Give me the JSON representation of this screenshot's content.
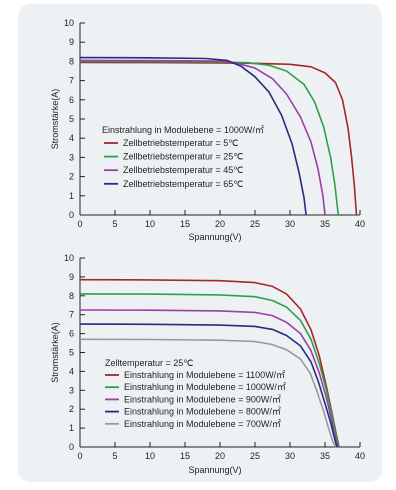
{
  "colors": {
    "red": "#a3282a",
    "green": "#2ea04a",
    "purple": "#9b3ea7",
    "navy": "#272c7f",
    "gray": "#9a9a9a",
    "axis": "#222222"
  },
  "chart_data": [
    {
      "type": "line",
      "title": "",
      "xlabel": "Spannung(V)",
      "ylabel": "Stromstärke(A)",
      "xlim": [
        0,
        40
      ],
      "ylim": [
        0,
        10
      ],
      "x_ticks": [
        0,
        5,
        10,
        15,
        20,
        25,
        30,
        35,
        40
      ],
      "y_ticks": [
        0,
        1,
        2,
        3,
        4,
        5,
        6,
        7,
        8,
        9,
        10
      ],
      "legend_title": "Einstrahlung in Modulebene = 1000W/㎡",
      "legend_position": "lower-left",
      "series": [
        {
          "name": "Zellbetriebstemperatur = 5℃",
          "color": "#a3282a",
          "points": [
            [
              0,
              7.95
            ],
            [
              10,
              7.94
            ],
            [
              20,
              7.92
            ],
            [
              25,
              7.9
            ],
            [
              30,
              7.85
            ],
            [
              33,
              7.72
            ],
            [
              35,
              7.4
            ],
            [
              36.5,
              6.9
            ],
            [
              37.5,
              6.0
            ],
            [
              38.3,
              4.5
            ],
            [
              38.8,
              3.0
            ],
            [
              39.2,
              1.5
            ],
            [
              39.5,
              0
            ]
          ]
        },
        {
          "name": "Zellbetriebstemperatur = 25℃",
          "color": "#2ea04a",
          "points": [
            [
              0,
              8.0
            ],
            [
              10,
              7.99
            ],
            [
              20,
              7.97
            ],
            [
              24,
              7.93
            ],
            [
              27,
              7.8
            ],
            [
              29.5,
              7.5
            ],
            [
              32,
              6.8
            ],
            [
              33.5,
              5.9
            ],
            [
              34.8,
              4.6
            ],
            [
              35.8,
              3.0
            ],
            [
              36.4,
              1.6
            ],
            [
              36.9,
              0
            ]
          ]
        },
        {
          "name": "Zellbetriebstemperatur = 45℃",
          "color": "#9b3ea7",
          "points": [
            [
              0,
              8.05
            ],
            [
              10,
              8.04
            ],
            [
              20,
              8.02
            ],
            [
              22.5,
              7.9
            ],
            [
              25,
              7.65
            ],
            [
              27.5,
              7.1
            ],
            [
              29.5,
              6.3
            ],
            [
              31.5,
              5.1
            ],
            [
              33,
              3.8
            ],
            [
              34,
              2.4
            ],
            [
              34.7,
              1.0
            ],
            [
              35,
              0
            ]
          ]
        },
        {
          "name": "Zellbetriebstemperatur = 65℃",
          "color": "#272c7f",
          "points": [
            [
              0,
              8.2
            ],
            [
              10,
              8.19
            ],
            [
              18,
              8.15
            ],
            [
              21,
              8.05
            ],
            [
              23,
              7.75
            ],
            [
              25,
              7.2
            ],
            [
              27,
              6.4
            ],
            [
              28.8,
              5.2
            ],
            [
              30.3,
              3.7
            ],
            [
              31.3,
              2.2
            ],
            [
              32,
              0.9
            ],
            [
              32.3,
              0
            ]
          ]
        }
      ]
    },
    {
      "type": "line",
      "title": "",
      "xlabel": "Spannung(V)",
      "ylabel": "Stromstärke(A)",
      "xlim": [
        0,
        40
      ],
      "ylim": [
        0,
        10
      ],
      "x_ticks": [
        0,
        5,
        10,
        15,
        20,
        25,
        30,
        35,
        40
      ],
      "y_ticks": [
        0,
        1,
        2,
        3,
        4,
        5,
        6,
        7,
        8,
        9,
        10
      ],
      "legend_title": "Zelltemperatur = 25℃",
      "legend_position": "lower-left",
      "series": [
        {
          "name": "Einstrahlung in Modulebene = 1100W/㎡",
          "color": "#a3282a",
          "points": [
            [
              0,
              8.85
            ],
            [
              10,
              8.84
            ],
            [
              20,
              8.8
            ],
            [
              25,
              8.7
            ],
            [
              27.5,
              8.5
            ],
            [
              29.5,
              8.1
            ],
            [
              31.5,
              7.3
            ],
            [
              33,
              6.2
            ],
            [
              34.2,
              4.8
            ],
            [
              35.2,
              3.2
            ],
            [
              36,
              1.8
            ],
            [
              36.6,
              0.7
            ],
            [
              37,
              0
            ]
          ]
        },
        {
          "name": "Einstrahlung in Modulebene = 1000W/㎡",
          "color": "#2ea04a",
          "points": [
            [
              0,
              8.1
            ],
            [
              10,
              8.09
            ],
            [
              20,
              8.05
            ],
            [
              25,
              7.95
            ],
            [
              27.5,
              7.75
            ],
            [
              29.5,
              7.4
            ],
            [
              31.5,
              6.7
            ],
            [
              33,
              5.7
            ],
            [
              34.2,
              4.4
            ],
            [
              35.2,
              3.0
            ],
            [
              36,
              1.7
            ],
            [
              36.6,
              0.6
            ],
            [
              36.9,
              0
            ]
          ]
        },
        {
          "name": "Einstrahlung in Modulebene = 900W/㎡",
          "color": "#9b3ea7",
          "points": [
            [
              0,
              7.25
            ],
            [
              10,
              7.24
            ],
            [
              20,
              7.2
            ],
            [
              25,
              7.12
            ],
            [
              27.5,
              6.95
            ],
            [
              29.5,
              6.6
            ],
            [
              31.5,
              6.0
            ],
            [
              33,
              5.1
            ],
            [
              34.2,
              3.9
            ],
            [
              35.2,
              2.6
            ],
            [
              35.9,
              1.5
            ],
            [
              36.5,
              0.5
            ],
            [
              36.8,
              0
            ]
          ]
        },
        {
          "name": "Einstrahlung in Modulebene = 800W/㎡",
          "color": "#272c7f",
          "points": [
            [
              0,
              6.5
            ],
            [
              10,
              6.49
            ],
            [
              20,
              6.45
            ],
            [
              25,
              6.38
            ],
            [
              27.5,
              6.22
            ],
            [
              29.5,
              5.9
            ],
            [
              31.5,
              5.35
            ],
            [
              33,
              4.5
            ],
            [
              34.1,
              3.4
            ],
            [
              35,
              2.3
            ],
            [
              35.8,
              1.3
            ],
            [
              36.4,
              0.4
            ],
            [
              36.7,
              0
            ]
          ]
        },
        {
          "name": "Einstrahlung in Modulebene = 700W/㎡",
          "color": "#9a9a9a",
          "points": [
            [
              0,
              5.7
            ],
            [
              10,
              5.69
            ],
            [
              20,
              5.65
            ],
            [
              25,
              5.58
            ],
            [
              27.5,
              5.42
            ],
            [
              29.5,
              5.15
            ],
            [
              31.5,
              4.65
            ],
            [
              32.9,
              3.9
            ],
            [
              33.9,
              2.9
            ],
            [
              34.8,
              1.9
            ],
            [
              35.5,
              1.0
            ],
            [
              36.1,
              0.3
            ],
            [
              36.5,
              0
            ]
          ]
        }
      ]
    }
  ]
}
